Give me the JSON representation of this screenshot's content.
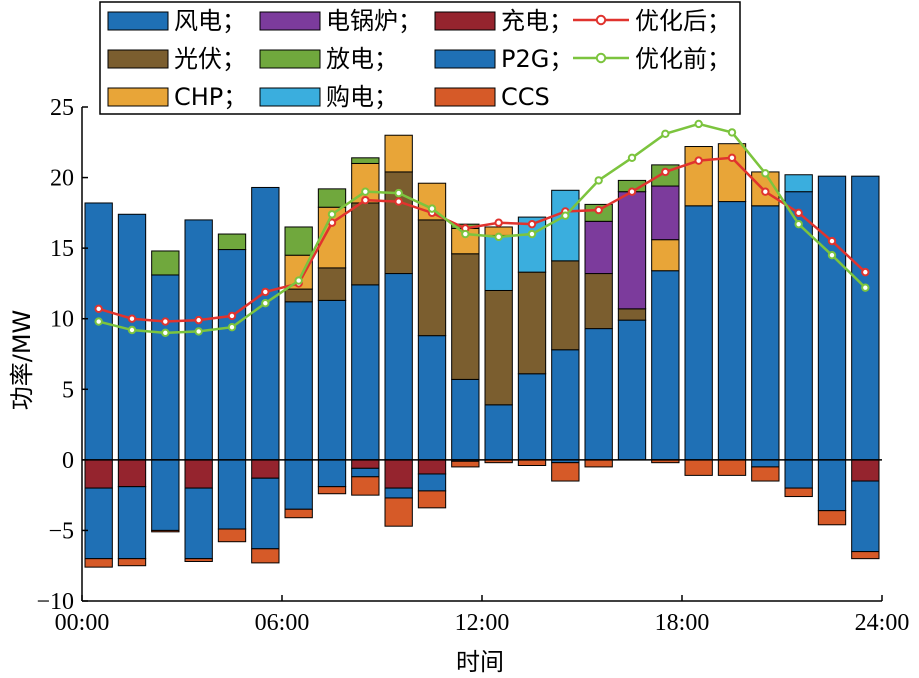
{
  "chart_data": {
    "type": "bar",
    "xlabel": "时间",
    "ylabel": "功率/MW",
    "ylim": [
      -10,
      25
    ],
    "yticks": [
      25,
      20,
      15,
      10,
      5,
      0,
      -5,
      -10
    ],
    "xlim": [
      0,
      24
    ],
    "xticks": [
      {
        "x": 0,
        "label": "00:00"
      },
      {
        "x": 6,
        "label": "06:00"
      },
      {
        "x": 12,
        "label": "12:00"
      },
      {
        "x": 18,
        "label": "18:00"
      },
      {
        "x": 24,
        "label": "24:00"
      }
    ],
    "hours": [
      1,
      2,
      3,
      4,
      5,
      6,
      7,
      8,
      9,
      10,
      11,
      12,
      13,
      14,
      15,
      16,
      17,
      18,
      19,
      20,
      21,
      22,
      23,
      24
    ],
    "positive_stack": [
      {
        "key": "wind",
        "name": "风电",
        "color": "#1f70b5",
        "values": [
          18.2,
          17.4,
          13.1,
          17.0,
          14.9,
          19.3,
          11.2,
          11.3,
          12.4,
          13.2,
          8.8,
          5.7,
          3.9,
          6.1,
          7.8,
          9.3,
          9.9,
          13.4,
          18.0,
          18.3,
          18.0,
          19.0,
          20.1,
          20.1
        ]
      },
      {
        "key": "pv",
        "name": "光伏",
        "color": "#7b5e2f",
        "values": [
          0,
          0,
          0,
          0,
          0,
          0,
          0.9,
          2.3,
          5.8,
          7.2,
          8.2,
          8.9,
          8.1,
          7.2,
          6.3,
          3.9,
          0.8,
          0,
          0,
          0,
          0,
          0,
          0,
          0
        ]
      },
      {
        "key": "ebuy",
        "name": "购电",
        "color": "#3aaede",
        "values": [
          0,
          0,
          0,
          0,
          0,
          0,
          0,
          0,
          0,
          0,
          0,
          0,
          3.9,
          3.9,
          5.0,
          0,
          0,
          0,
          0,
          0,
          0,
          1.2,
          0,
          0
        ]
      },
      {
        "key": "chp",
        "name": "CHP",
        "color": "#e8a538",
        "values": [
          0,
          0,
          0,
          0,
          0,
          0,
          2.4,
          4.3,
          2.8,
          2.6,
          2.6,
          1.8,
          0.6,
          0,
          0,
          0,
          0,
          2.2,
          4.2,
          4.1,
          2.4,
          0,
          0,
          0
        ]
      },
      {
        "key": "boiler_pos",
        "name": "电锅炉",
        "color": "#7c3b9c",
        "values": [
          0,
          0,
          0,
          0,
          0,
          0,
          0,
          0,
          0,
          0,
          0,
          0,
          0,
          0,
          0,
          3.7,
          8.3,
          3.8,
          0,
          0,
          0,
          0,
          0,
          0
        ]
      },
      {
        "key": "discharge",
        "name": "放电",
        "color": "#70a83d",
        "values": [
          0,
          0,
          1.7,
          0,
          1.1,
          0,
          2.0,
          1.3,
          0.4,
          0,
          0,
          0.3,
          0,
          0,
          0,
          1.2,
          0.8,
          1.5,
          0,
          0,
          0,
          0,
          0,
          0
        ]
      }
    ],
    "negative_stack": [
      {
        "key": "charge",
        "name": "充电",
        "color": "#95242e",
        "values": [
          -2.0,
          -1.9,
          0,
          -2.0,
          0,
          -1.3,
          0,
          0,
          -0.6,
          -2.0,
          -1.0,
          0,
          0,
          0,
          0,
          0,
          0,
          0,
          0,
          0,
          0,
          0,
          0,
          -1.5
        ]
      },
      {
        "key": "p2g",
        "name": "P2G",
        "color": "#1f70b5",
        "values": [
          -5.0,
          -5.1,
          -5.0,
          -5.0,
          -4.9,
          -5.0,
          -3.5,
          -1.9,
          -0.6,
          -0.7,
          -1.2,
          -0.1,
          0,
          0,
          -0.2,
          0,
          0,
          0,
          0,
          0,
          -0.5,
          -2.0,
          -3.6,
          -5.0
        ]
      },
      {
        "key": "ccs",
        "name": "CCS",
        "color": "#d65a28",
        "values": [
          -0.6,
          -0.5,
          -0.1,
          -0.2,
          -0.9,
          -1.0,
          -0.6,
          -0.5,
          -1.3,
          -2.0,
          -1.2,
          -0.4,
          -0.2,
          -0.4,
          -1.3,
          -0.5,
          0,
          -0.2,
          -1.1,
          -1.1,
          -1.0,
          -0.6,
          -1.0,
          -0.5
        ]
      }
    ],
    "series": [
      {
        "name": "优化后",
        "color": "#e0332e",
        "values": [
          10.7,
          10.0,
          9.8,
          9.9,
          10.2,
          11.9,
          12.5,
          16.8,
          18.4,
          18.3,
          17.5,
          16.4,
          16.8,
          16.7,
          17.6,
          17.7,
          19.0,
          20.4,
          21.2,
          21.4,
          19.0,
          17.5,
          15.5,
          13.3
        ]
      },
      {
        "name": "优化前",
        "color": "#7cc43e",
        "values": [
          9.8,
          9.2,
          9.0,
          9.1,
          9.4,
          11.1,
          12.7,
          17.4,
          19.0,
          18.9,
          17.8,
          16.0,
          15.8,
          16.0,
          17.3,
          19.8,
          21.4,
          23.1,
          23.8,
          23.2,
          20.3,
          16.7,
          14.5,
          12.2
        ]
      }
    ],
    "legend": {
      "placement": "top-left",
      "rows": [
        [
          {
            "kind": "patch",
            "name": "风电",
            "color": "#1f70b5"
          },
          {
            "kind": "patch",
            "name": "电锅炉",
            "color": "#7c3b9c"
          },
          {
            "kind": "patch",
            "name": "充电",
            "color": "#95242e"
          },
          {
            "kind": "line",
            "name": "优化后",
            "color": "#e0332e"
          }
        ],
        [
          {
            "kind": "patch",
            "name": "光伏",
            "color": "#7b5e2f"
          },
          {
            "kind": "patch",
            "name": "放电",
            "color": "#70a83d"
          },
          {
            "kind": "patch",
            "name": "P2G",
            "color": "#1f70b5"
          },
          {
            "kind": "line",
            "name": "优化前",
            "color": "#7cc43e"
          }
        ],
        [
          {
            "kind": "patch",
            "name": "CHP",
            "color": "#e8a538"
          },
          {
            "kind": "patch",
            "name": "购电",
            "color": "#3aaede"
          },
          {
            "kind": "patch",
            "name": "CCS",
            "color": "#d65a28"
          }
        ]
      ]
    }
  }
}
